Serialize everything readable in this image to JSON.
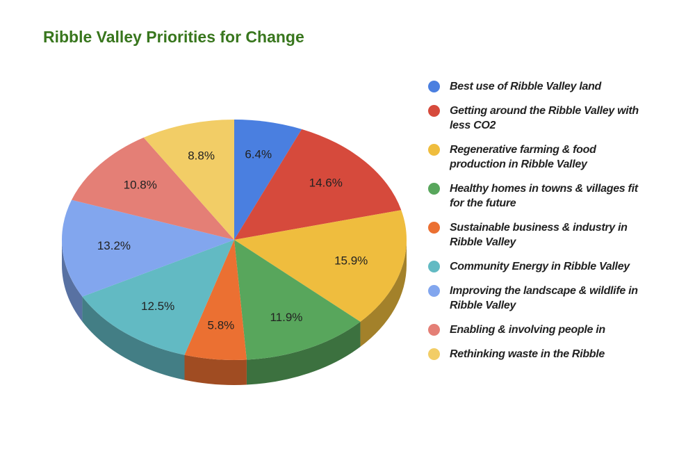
{
  "chart_data": {
    "type": "pie",
    "title": "Ribble Valley Priorities for Change",
    "categories": [
      "Best use of Ribble Valley land",
      "Getting around the Ribble Valley with less CO2",
      "Regenerative farming & food production in Ribble Valley",
      "Healthy homes in towns & villages fit for the future",
      "Sustainable business & industry in Ribble Valley",
      "Community Energy in Ribble Valley",
      "Improving the landscape & wildlife in Ribble Valley",
      "Enabling & involving people in",
      "Rethinking waste in the Ribble"
    ],
    "values": [
      6.4,
      14.6,
      15.9,
      11.9,
      5.8,
      12.5,
      13.2,
      10.8,
      8.8
    ],
    "value_labels": [
      "6.4%",
      "14.6%",
      "15.9%",
      "11.9%",
      "5.8%",
      "12.5%",
      "13.2%",
      "10.8%",
      "8.8%"
    ],
    "colors": [
      "#4a7fe0",
      "#d64a3c",
      "#efbd3e",
      "#58a65c",
      "#eb7032",
      "#62bac3",
      "#82a6ee",
      "#e47f76",
      "#f2cd66"
    ],
    "legend": "right",
    "three_d": true
  }
}
